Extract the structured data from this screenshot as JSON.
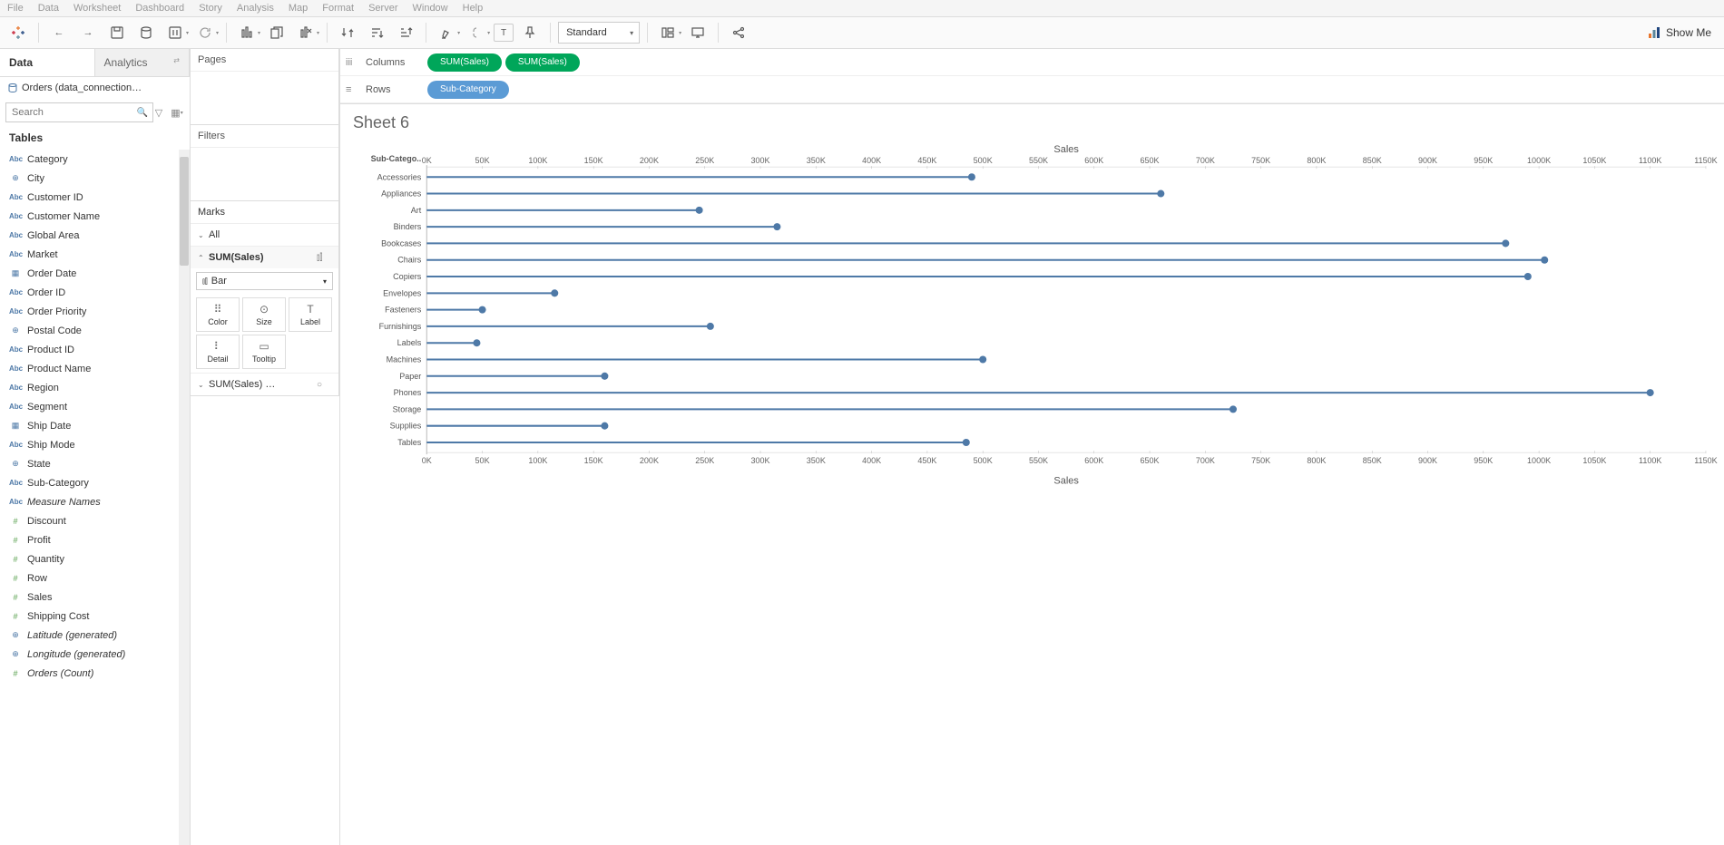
{
  "menubar": [
    "File",
    "Data",
    "Worksheet",
    "Dashboard",
    "Story",
    "Analysis",
    "Map",
    "Format",
    "Server",
    "Window",
    "Help"
  ],
  "toolbar": {
    "fit_mode": "Standard",
    "showme": "Show Me"
  },
  "sidebar": {
    "tabs": {
      "data": "Data",
      "analytics": "Analytics"
    },
    "datasource": "Orders (data_connection…",
    "search_placeholder": "Search",
    "tables_header": "Tables",
    "fields": [
      {
        "icon": "abc",
        "label": "Category"
      },
      {
        "icon": "globe",
        "label": "City"
      },
      {
        "icon": "abc",
        "label": "Customer ID"
      },
      {
        "icon": "abc",
        "label": "Customer Name"
      },
      {
        "icon": "abc",
        "label": "Global Area"
      },
      {
        "icon": "abc",
        "label": "Market"
      },
      {
        "icon": "cal",
        "label": "Order Date"
      },
      {
        "icon": "abc",
        "label": "Order ID"
      },
      {
        "icon": "abc",
        "label": "Order Priority"
      },
      {
        "icon": "globe",
        "label": "Postal Code"
      },
      {
        "icon": "abc",
        "label": "Product ID"
      },
      {
        "icon": "abc",
        "label": "Product Name"
      },
      {
        "icon": "abc",
        "label": "Region"
      },
      {
        "icon": "abc",
        "label": "Segment"
      },
      {
        "icon": "cal",
        "label": "Ship Date"
      },
      {
        "icon": "abc",
        "label": "Ship Mode"
      },
      {
        "icon": "globe",
        "label": "State"
      },
      {
        "icon": "abc",
        "label": "Sub-Category"
      },
      {
        "icon": "abc",
        "label": "Measure Names",
        "italic": true
      },
      {
        "icon": "hash",
        "label": "Discount"
      },
      {
        "icon": "hash",
        "label": "Profit"
      },
      {
        "icon": "hash",
        "label": "Quantity"
      },
      {
        "icon": "hash",
        "label": "Row"
      },
      {
        "icon": "hash",
        "label": "Sales"
      },
      {
        "icon": "hash",
        "label": "Shipping Cost"
      },
      {
        "icon": "globe",
        "label": "Latitude (generated)",
        "italic": true
      },
      {
        "icon": "globe",
        "label": "Longitude (generated)",
        "italic": true
      },
      {
        "icon": "hash",
        "label": "Orders (Count)",
        "italic": true
      }
    ]
  },
  "cards": {
    "pages": "Pages",
    "filters": "Filters",
    "marks": "Marks",
    "all": "All",
    "sum_sales": "SUM(Sales)",
    "sum_sales_2": "SUM(Sales) …",
    "mark_type": "Bar",
    "buttons": [
      {
        "icon": "⠿",
        "label": "Color"
      },
      {
        "icon": "⊙",
        "label": "Size"
      },
      {
        "icon": "T",
        "label": "Label"
      },
      {
        "icon": "⠇",
        "label": "Detail"
      },
      {
        "icon": "▭",
        "label": "Tooltip"
      }
    ]
  },
  "shelves": {
    "columns_label": "Columns",
    "rows_label": "Rows",
    "columns_pills": [
      "SUM(Sales)",
      "SUM(Sales)"
    ],
    "rows_pills": [
      "Sub-Category"
    ]
  },
  "sheet": {
    "title": "Sheet 6",
    "axis_title": "Sales",
    "category_header": "Sub-Catego..",
    "x_min": 0,
    "x_max": 1150000,
    "x_tick_step": 50000,
    "x_ticks": [
      "0K",
      "50K",
      "100K",
      "150K",
      "200K",
      "250K",
      "300K",
      "350K",
      "400K",
      "450K",
      "500K",
      "550K",
      "600K",
      "650K",
      "700K",
      "750K",
      "800K",
      "850K",
      "900K",
      "950K",
      "1000K",
      "1050K",
      "1100K",
      "1150K"
    ],
    "bar_color": "#4e79a7",
    "dot_color": "#4e79a7",
    "line_width": 2,
    "dot_radius": 4,
    "data": [
      {
        "cat": "Accessories",
        "val": 490000
      },
      {
        "cat": "Appliances",
        "val": 660000
      },
      {
        "cat": "Art",
        "val": 245000
      },
      {
        "cat": "Binders",
        "val": 315000
      },
      {
        "cat": "Bookcases",
        "val": 970000
      },
      {
        "cat": "Chairs",
        "val": 1005000
      },
      {
        "cat": "Copiers",
        "val": 990000
      },
      {
        "cat": "Envelopes",
        "val": 115000
      },
      {
        "cat": "Fasteners",
        "val": 50000
      },
      {
        "cat": "Furnishings",
        "val": 255000
      },
      {
        "cat": "Labels",
        "val": 45000
      },
      {
        "cat": "Machines",
        "val": 500000
      },
      {
        "cat": "Paper",
        "val": 160000
      },
      {
        "cat": "Phones",
        "val": 1100000
      },
      {
        "cat": "Storage",
        "val": 725000
      },
      {
        "cat": "Supplies",
        "val": 160000
      },
      {
        "cat": "Tables",
        "val": 485000
      }
    ]
  }
}
